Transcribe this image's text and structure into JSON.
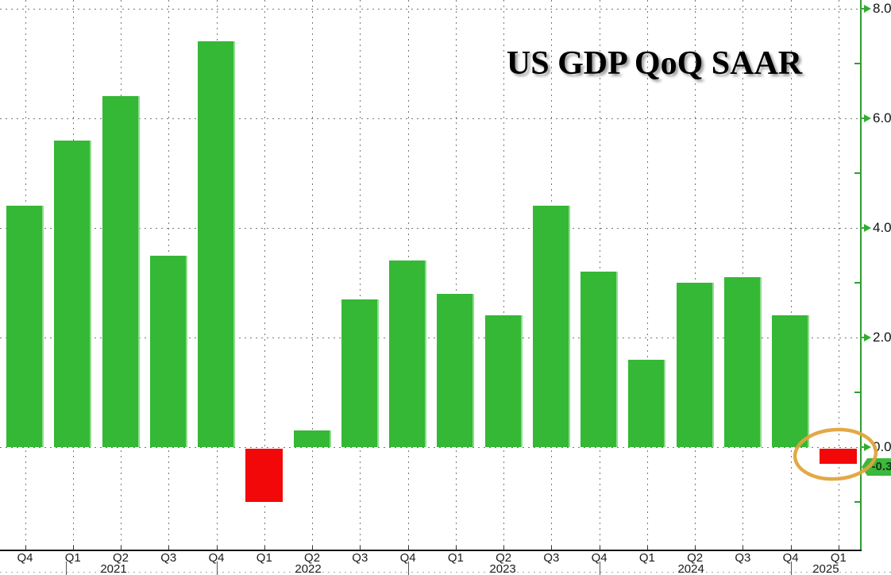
{
  "title": "US GDP QoQ SAAR",
  "chart_data": {
    "type": "bar",
    "title": "US GDP QoQ SAAR",
    "categories": [
      "Q4 2020",
      "Q1 2021",
      "Q2 2021",
      "Q3 2021",
      "Q4 2021",
      "Q1 2022",
      "Q2 2022",
      "Q3 2022",
      "Q4 2022",
      "Q1 2023",
      "Q2 2023",
      "Q3 2023",
      "Q4 2023",
      "Q1 2024",
      "Q2 2024",
      "Q3 2024",
      "Q4 2024",
      "Q1 2025"
    ],
    "x_tick_labels": [
      "Q4",
      "Q1",
      "Q2",
      "Q3",
      "Q4",
      "Q1",
      "Q2",
      "Q3",
      "Q4",
      "Q1",
      "Q2",
      "Q3",
      "Q4",
      "Q1",
      "Q2",
      "Q3",
      "Q4",
      "Q1"
    ],
    "year_labels": [
      {
        "text": "2021",
        "index": 2
      },
      {
        "text": "2022",
        "index": 6
      },
      {
        "text": "2023",
        "index": 10
      },
      {
        "text": "2024",
        "index": 14
      },
      {
        "text": "2025",
        "index": 17
      }
    ],
    "values": [
      4.4,
      5.6,
      6.4,
      3.5,
      7.4,
      -1.0,
      0.3,
      2.7,
      3.4,
      2.8,
      2.4,
      4.4,
      3.2,
      1.6,
      3.0,
      3.1,
      2.4,
      -0.3
    ],
    "xlabel": "",
    "ylabel": "",
    "ylim": [
      -1.9,
      8.2
    ],
    "y_major_ticks": [
      "8.0",
      "6.0",
      "4.0",
      "2.0",
      "0.0"
    ],
    "y_major_values": [
      8,
      6,
      4,
      2,
      0
    ],
    "y_minor_values": [
      7,
      5,
      3,
      1,
      -1
    ],
    "grid": "dotted-both-axes",
    "legend": "none",
    "bar_colors": {
      "positive": "#35b835",
      "negative": "#f20808"
    },
    "last_value_label": "-0.3"
  },
  "annotations": {
    "value_tag": {
      "label": "-0.3",
      "bg": "#3cb83c"
    },
    "highlight_ellipse": {
      "color": "#e2a43c"
    }
  },
  "colors": {
    "background": "#ffffff",
    "axis": "#2f9e2f",
    "arrow": "#2fae2f",
    "grid": "#777777",
    "title": "#000000",
    "tick_text": "#111111"
  }
}
